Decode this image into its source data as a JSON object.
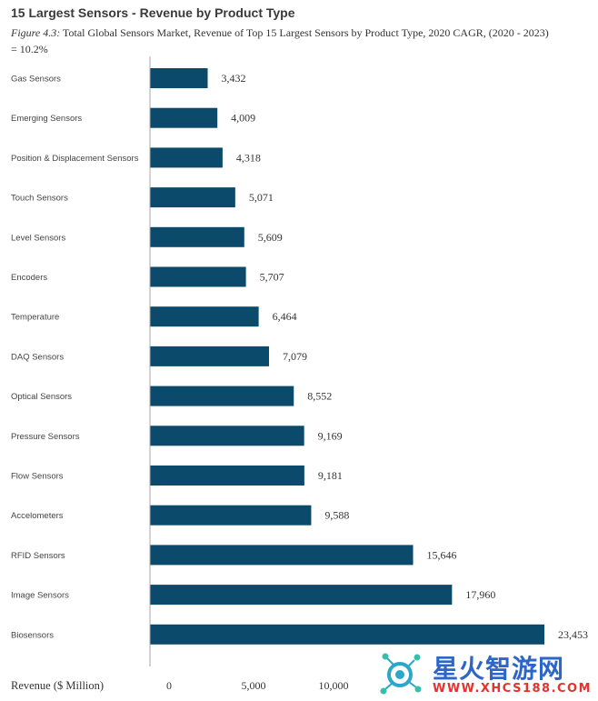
{
  "header": {
    "title": "15 Largest Sensors - Revenue by Product Type",
    "figure_ref": "Figure 4.3:",
    "subtitle_rest": " Total Global Sensors Market, Revenue of Top 15 Largest Sensors by Product Type, 2020  CAGR, (2020 - 2023) = 10.2%"
  },
  "colors": {
    "bar": "#0c4a6b",
    "axis": "#aaaaaa"
  },
  "chart_data": {
    "type": "bar",
    "orientation": "horizontal",
    "title": "15 Largest Sensors - Revenue by Product Type",
    "xlabel": "Revenue ($ Million)",
    "ylabel": "",
    "xlim": [
      0,
      23453
    ],
    "xticks": [
      0,
      5000,
      10000
    ],
    "xtick_labels": [
      "0",
      "5,000",
      "10,000"
    ],
    "grid": false,
    "legend": "none",
    "categories": [
      "Gas Sensors",
      "Emerging Sensors",
      "Position & Displacement Sensors",
      "Touch Sensors",
      "Level Sensors",
      "Encoders",
      "Temperature",
      "DAQ Sensors",
      "Optical Sensors",
      "Pressure Sensors",
      "Flow Sensors",
      "Accelometers",
      "RFID Sensors",
      "Image Sensors",
      "Biosensors"
    ],
    "values": [
      3432,
      4009,
      4318,
      5071,
      5609,
      5707,
      6464,
      7079,
      8552,
      9169,
      9181,
      9588,
      15646,
      17960,
      23453
    ],
    "value_labels": [
      "3,432",
      "4,009",
      "4,318",
      "5,071",
      "5,609",
      "5,707",
      "6,464",
      "7,079",
      "8,552",
      "9,169",
      "9,181",
      "9,588",
      "15,646",
      "17,960",
      "23,453"
    ]
  },
  "watermark": {
    "text": "星火智游网",
    "url": "WWW.XHCS188.COM"
  }
}
